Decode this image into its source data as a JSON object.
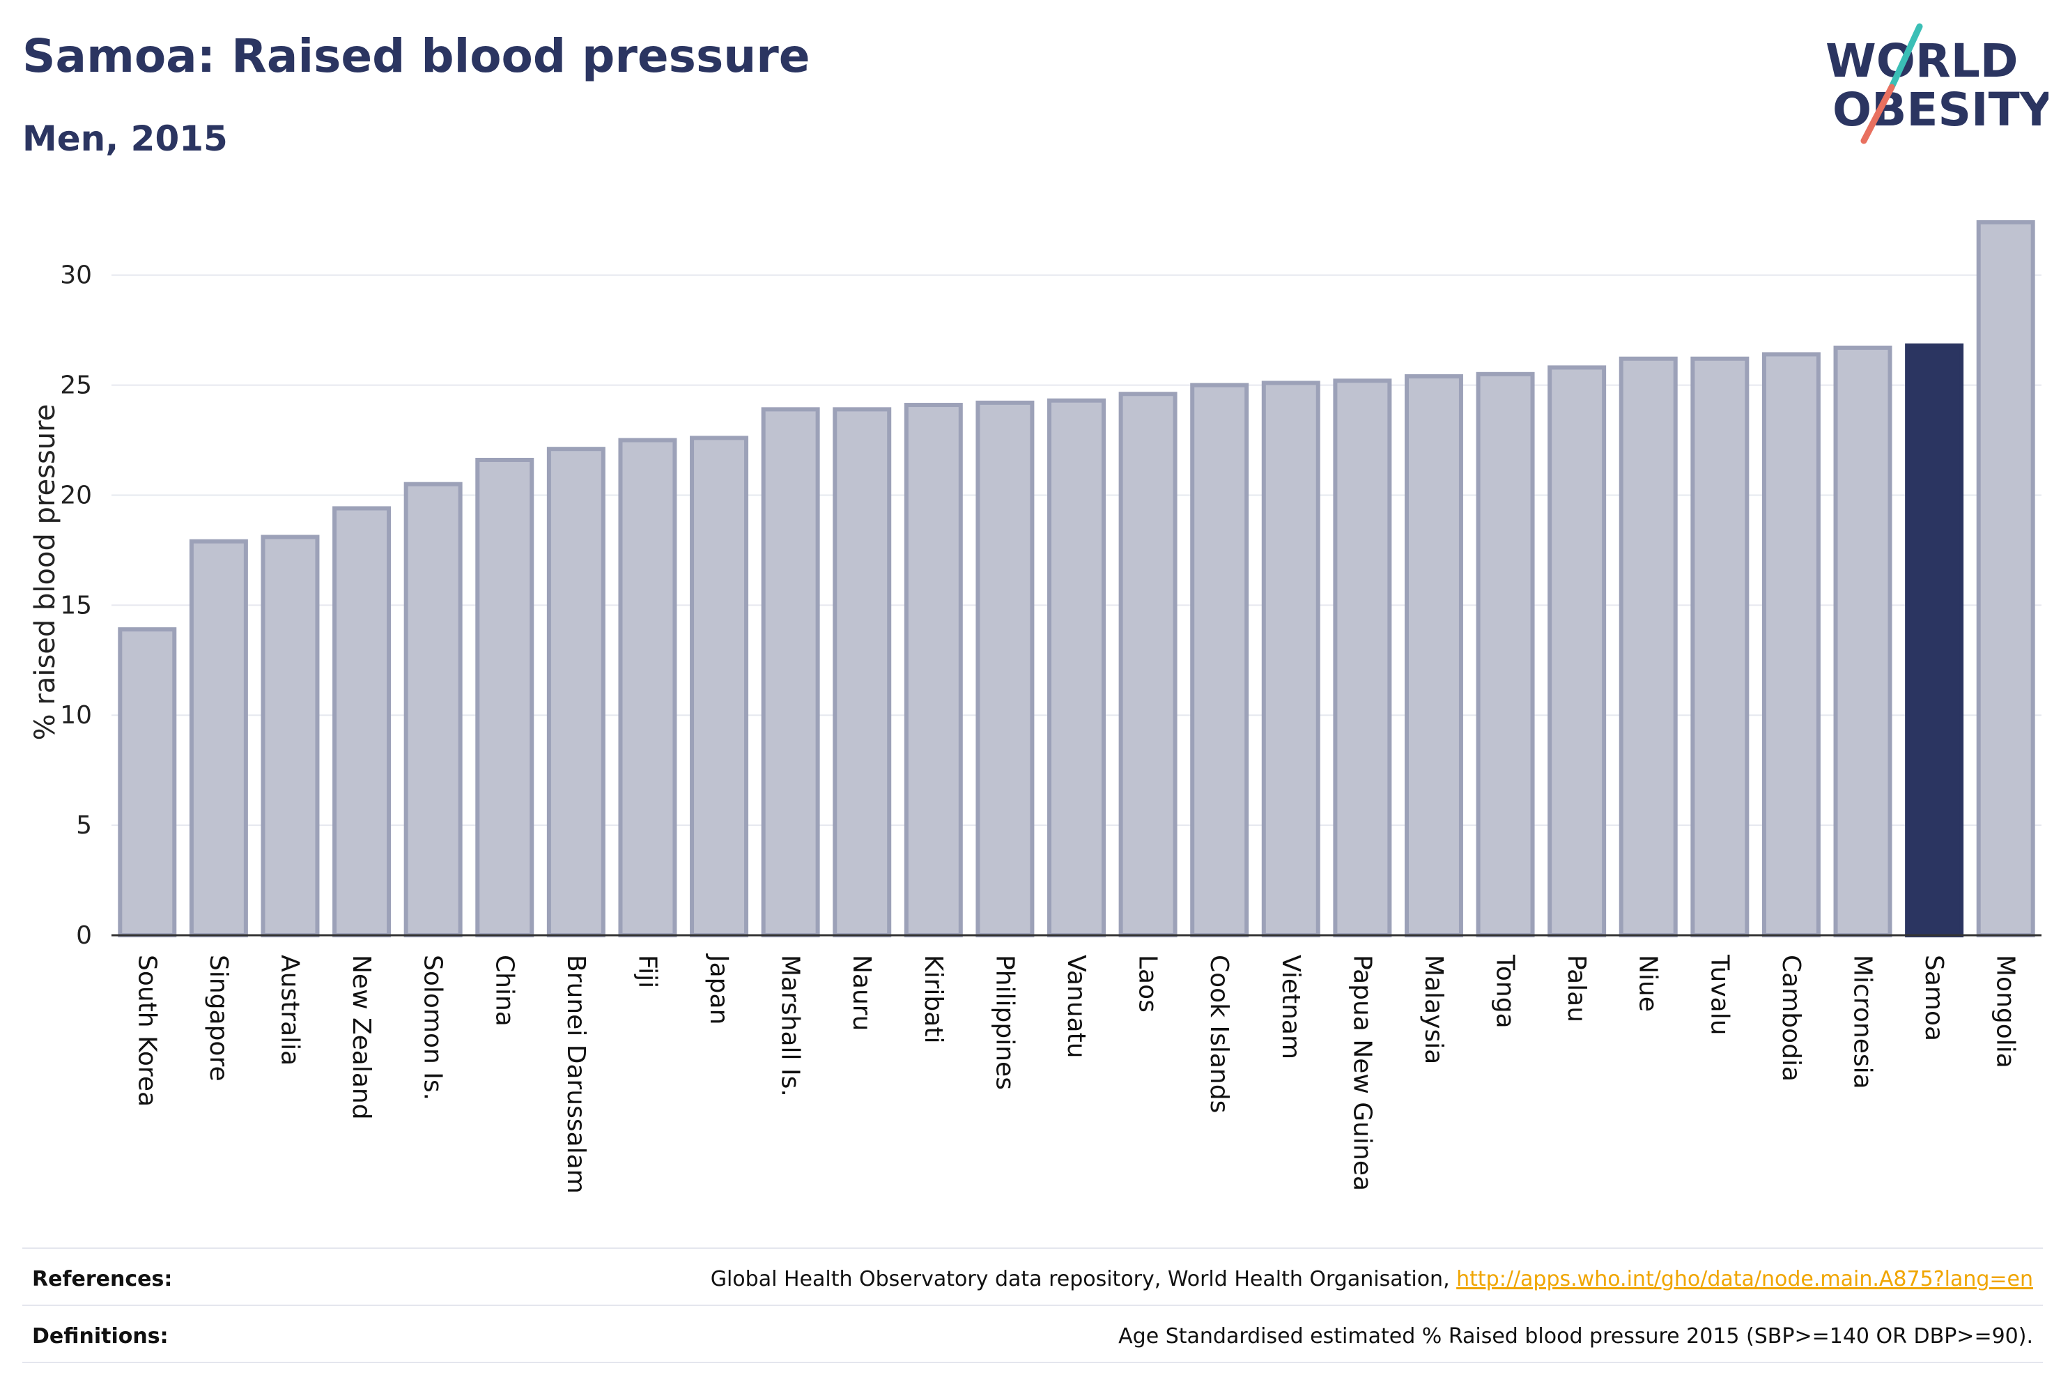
{
  "header": {
    "title": "Samoa: Raised blood pressure",
    "subtitle": "Men, 2015"
  },
  "logo": {
    "line1": "WORLD",
    "line2": "OBESITY",
    "slash_colors": [
      "#3bbfb6",
      "#e8705f"
    ],
    "text_color": "#2b3561"
  },
  "footer": {
    "references_label": "References:",
    "references_text": "Global Health Observatory data repository, World Health Organisation, ",
    "references_link": "http://apps.who.int/gho/data/node.main.A875?lang=en",
    "definitions_label": "Definitions:",
    "definitions_text": "Age Standardised estimated % Raised blood pressure 2015 (SBP>=140 OR DBP>=90)."
  },
  "chart_data": {
    "type": "bar",
    "title": "",
    "xlabel": "",
    "ylabel": "% raised blood pressure",
    "ylim": [
      0,
      33
    ],
    "yticks": [
      0,
      5,
      10,
      15,
      20,
      25,
      30
    ],
    "grid": true,
    "highlight": "Samoa",
    "colors": {
      "bar": "#bfc2d0",
      "bar_edge": "#9ca1b8",
      "highlight": "#2b3561",
      "grid": "#e6e8ef",
      "axis": "#333333"
    },
    "categories": [
      "South Korea",
      "Singapore",
      "Australia",
      "New Zealand",
      "Solomon Is.",
      "China",
      "Brunei Darussalam",
      "Fiji",
      "Japan",
      "Marshall Is.",
      "Nauru",
      "Kiribati",
      "Philippines",
      "Vanuatu",
      "Laos",
      "Cook Islands",
      "Vietnam",
      "Papua New Guinea",
      "Malaysia",
      "Tonga",
      "Palau",
      "Niue",
      "Tuvalu",
      "Cambodia",
      "Micronesia",
      "Samoa",
      "Mongolia"
    ],
    "values": [
      13.9,
      17.9,
      18.1,
      19.4,
      20.5,
      21.6,
      22.1,
      22.5,
      22.6,
      23.9,
      23.9,
      24.1,
      24.2,
      24.3,
      24.6,
      25.0,
      25.1,
      25.2,
      25.4,
      25.5,
      25.8,
      26.2,
      26.2,
      26.4,
      26.7,
      26.8,
      32.4
    ]
  }
}
